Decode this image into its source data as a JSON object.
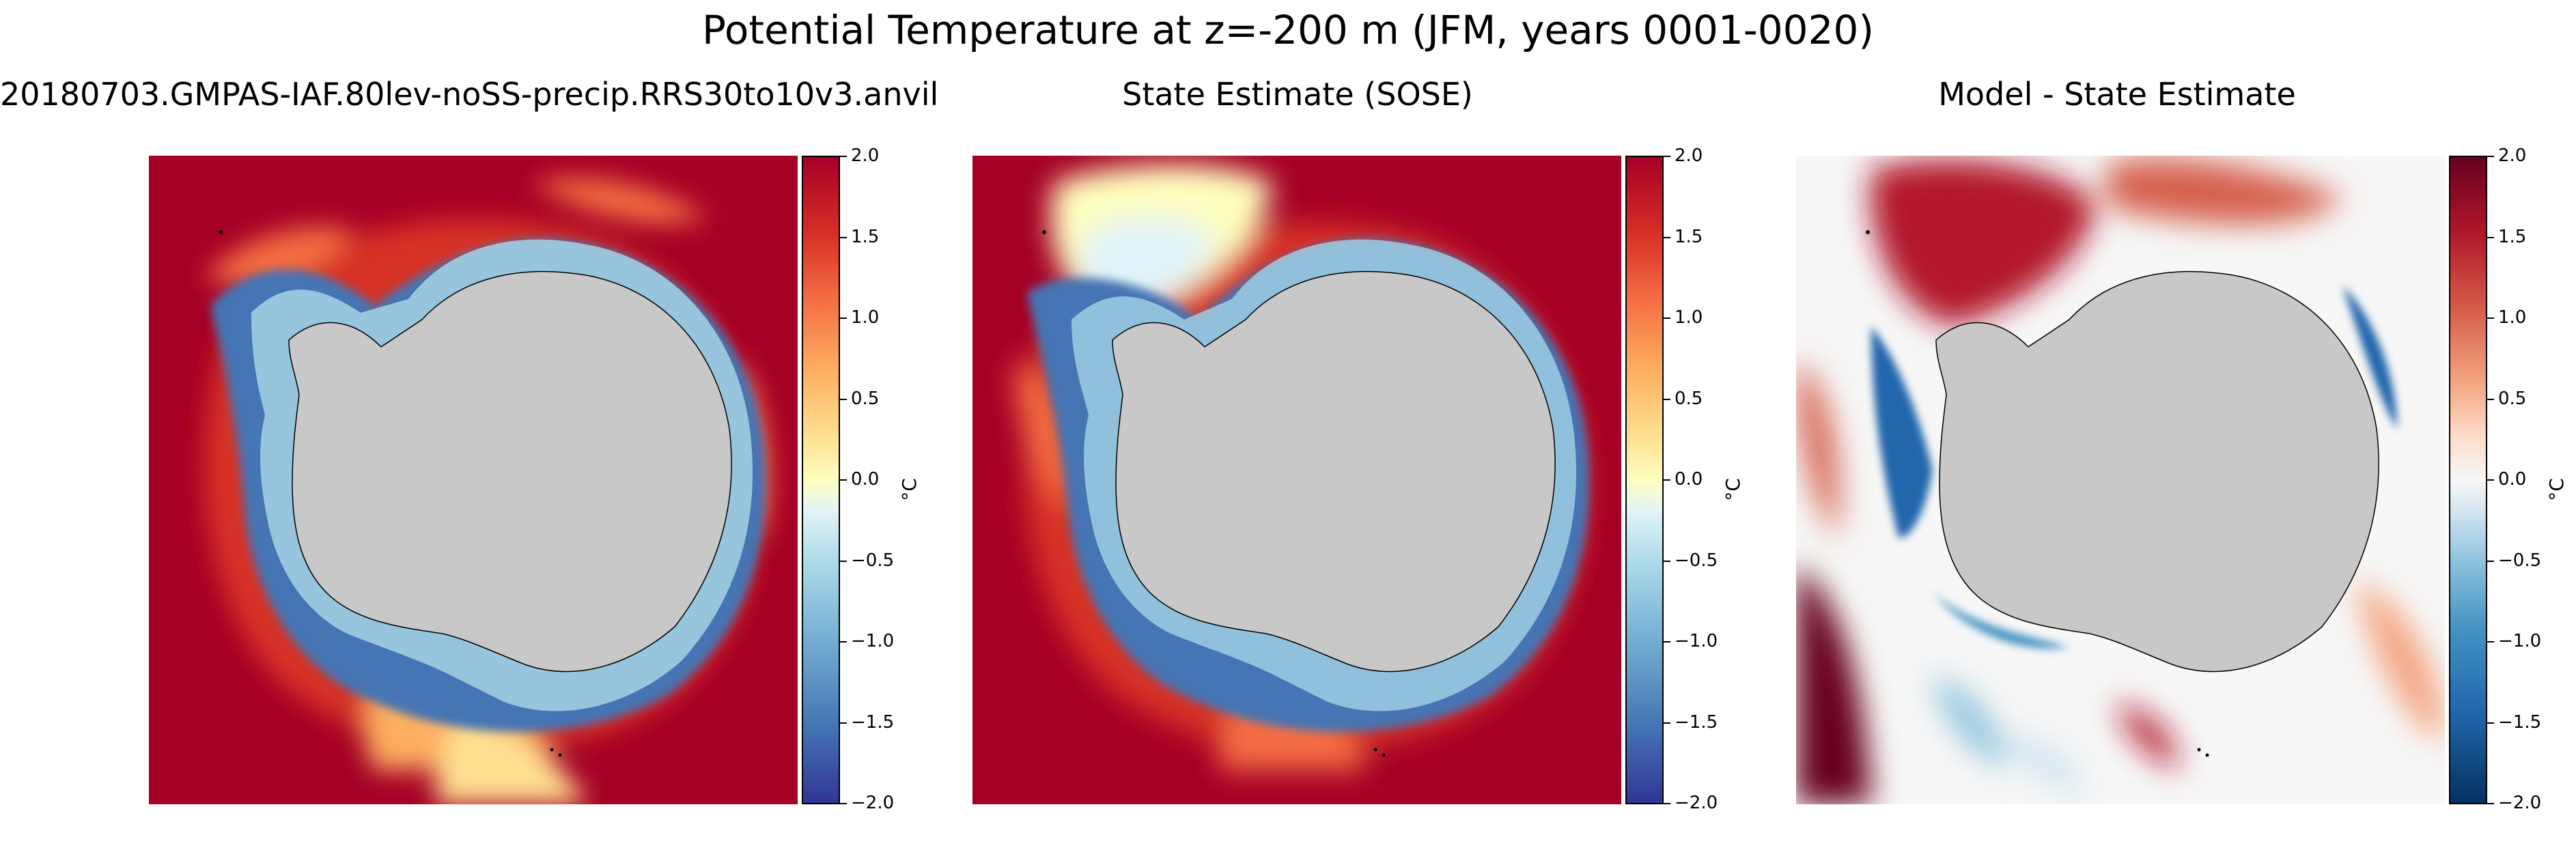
{
  "figure": {
    "title": "Potential Temperature at z=-200 m (JFM, years 0001-0020)"
  },
  "panels": [
    {
      "title": "20180703.GMPAS-IAF.80lev-noSS-precip.RRS30to10v3.anvil",
      "colormap": "RdYlBu_r",
      "colorbar": {
        "label": "°C",
        "range": [
          -2.0,
          2.0
        ],
        "ticks": [
          "2.0",
          "1.5",
          "1.0",
          "0.5",
          "0.0",
          "−0.5",
          "−1.0",
          "−1.5",
          "−2.0"
        ]
      }
    },
    {
      "title": "State Estimate (SOSE)",
      "colormap": "RdYlBu_r",
      "colorbar": {
        "label": "°C",
        "range": [
          -2.0,
          2.0
        ],
        "ticks": [
          "2.0",
          "1.5",
          "1.0",
          "0.5",
          "0.0",
          "−0.5",
          "−1.0",
          "−1.5",
          "−2.0"
        ]
      }
    },
    {
      "title": "Model - State Estimate",
      "colormap": "RdBu_r",
      "colorbar": {
        "label": "°C",
        "range": [
          -2.0,
          2.0
        ],
        "ticks": [
          "2.0",
          "1.5",
          "1.0",
          "0.5",
          "0.0",
          "−0.5",
          "−1.0",
          "−1.5",
          "−2.0"
        ]
      }
    }
  ],
  "colors": {
    "land": "#c8c8c8",
    "warm_extreme": "#a50026",
    "cold_extreme": "#313695",
    "diff_pos_extreme": "#67001f",
    "diff_neg_extreme": "#053061"
  }
}
